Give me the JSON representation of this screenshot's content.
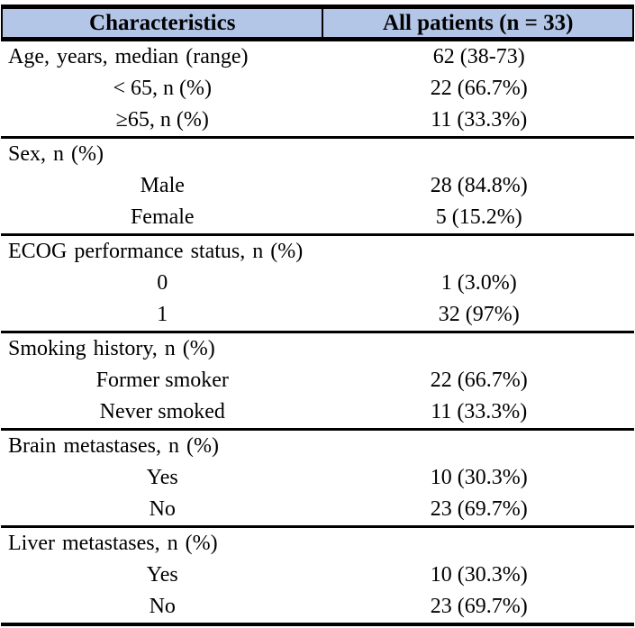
{
  "table": {
    "header": {
      "characteristics": "Characteristics",
      "all_patients": "All patients (n = 33)"
    },
    "colors": {
      "header_bg": "#b4c6e7",
      "border": "#000000",
      "text": "#000000"
    },
    "sections": [
      {
        "rows": [
          {
            "label": "Age, years, median (range)",
            "value": "62 (38-73)"
          },
          {
            "label": "< 65, n (%)",
            "value": "22 (66.7%)"
          },
          {
            "label": "≥65, n (%)",
            "value": "11 (33.3%)"
          }
        ]
      },
      {
        "rows": [
          {
            "label": "Sex, n (%)",
            "value": ""
          },
          {
            "label": "Male",
            "value": "28 (84.8%)"
          },
          {
            "label": "Female",
            "value": "5 (15.2%)"
          }
        ]
      },
      {
        "rows": [
          {
            "label": "ECOG performance status, n (%)",
            "value": ""
          },
          {
            "label": "0",
            "value": "1 (3.0%)"
          },
          {
            "label": "1",
            "value": "32 (97%)"
          }
        ]
      },
      {
        "rows": [
          {
            "label": "Smoking history, n (%)",
            "value": ""
          },
          {
            "label": "Former smoker",
            "value": "22 (66.7%)"
          },
          {
            "label": "Never smoked",
            "value": "11 (33.3%)"
          }
        ]
      },
      {
        "rows": [
          {
            "label": "Brain metastases, n (%)",
            "value": ""
          },
          {
            "label": "Yes",
            "value": "10 (30.3%)"
          },
          {
            "label": "No",
            "value": "23 (69.7%)"
          }
        ]
      },
      {
        "rows": [
          {
            "label": "Liver metastases, n (%)",
            "value": ""
          },
          {
            "label": "Yes",
            "value": "10 (30.3%)"
          },
          {
            "label": "No",
            "value": "23 (69.7%)"
          }
        ]
      }
    ]
  }
}
